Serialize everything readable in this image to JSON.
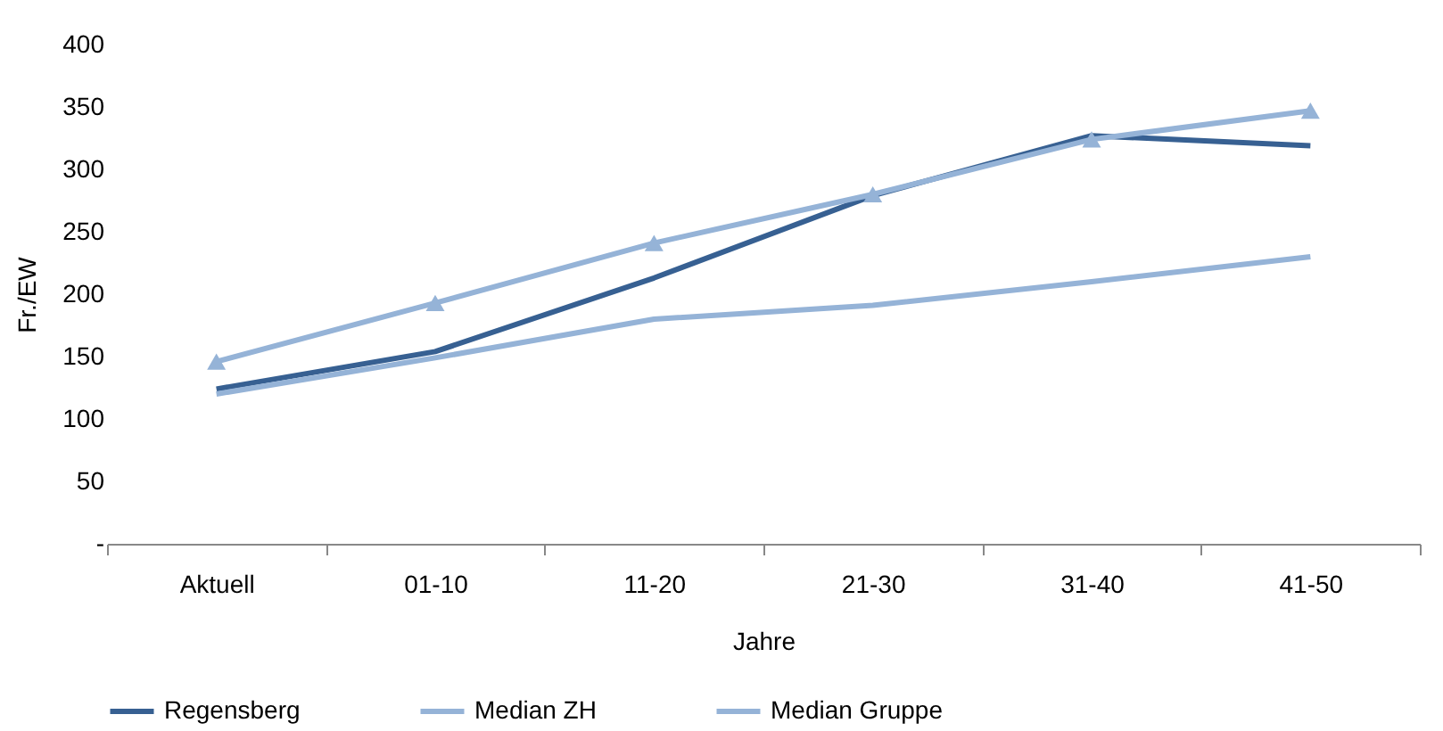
{
  "chart_data": {
    "type": "line",
    "xlabel": "Jahre",
    "ylabel": "Fr./EW",
    "categories": [
      "Aktuell",
      "01-10",
      "11-20",
      "21-30",
      "31-40",
      "41-50"
    ],
    "series": [
      {
        "name": "Regensberg",
        "color": "#376092",
        "values": [
          124,
          154,
          213,
          279,
          327,
          319
        ]
      },
      {
        "name": "Median ZH",
        "color": "#95b3d7",
        "values": [
          120,
          149,
          180,
          191,
          210,
          230
        ]
      },
      {
        "name": "Median Gruppe",
        "color": "#95b3d7",
        "marker": "triangle",
        "values": [
          146,
          193,
          241,
          280,
          324,
          347
        ]
      }
    ],
    "ylim": [
      0,
      400
    ],
    "yticks": [
      {
        "value": 0,
        "label": "-"
      },
      50,
      100,
      150,
      200,
      250,
      300,
      350,
      400
    ],
    "grid": false,
    "legend": "bottom"
  }
}
